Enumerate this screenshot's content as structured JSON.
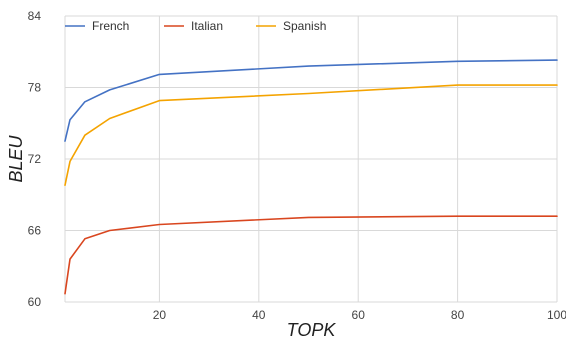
{
  "chart_data": {
    "type": "line",
    "xlabel": "TOPK",
    "ylabel": "BLEU",
    "xlim": [
      1,
      100
    ],
    "ylim": [
      60,
      84
    ],
    "xticks": [
      20,
      40,
      60,
      80,
      100
    ],
    "yticks": [
      60,
      66,
      72,
      78,
      84
    ],
    "xtick_labels": [
      "20",
      "40",
      "60",
      "80",
      "100"
    ],
    "ytick_labels": [
      "60",
      "66",
      "72",
      "78",
      "84"
    ],
    "grid": true,
    "legend": "top-left",
    "series": [
      {
        "name": "French",
        "color": "#4472C4",
        "x": [
          1,
          2,
          5,
          10,
          20,
          50,
          80,
          100
        ],
        "y": [
          73.5,
          75.3,
          76.8,
          77.8,
          79.1,
          79.8,
          80.2,
          80.3
        ]
      },
      {
        "name": "Italian",
        "color": "#D9461F",
        "x": [
          1,
          2,
          5,
          10,
          20,
          50,
          80,
          100
        ],
        "y": [
          60.7,
          63.6,
          65.3,
          66.0,
          66.5,
          67.1,
          67.2,
          67.2
        ]
      },
      {
        "name": "Spanish",
        "color": "#F4A300",
        "x": [
          1,
          2,
          5,
          10,
          20,
          50,
          80,
          100
        ],
        "y": [
          69.8,
          71.8,
          74.0,
          75.4,
          76.9,
          77.5,
          78.2,
          78.2
        ]
      }
    ]
  }
}
